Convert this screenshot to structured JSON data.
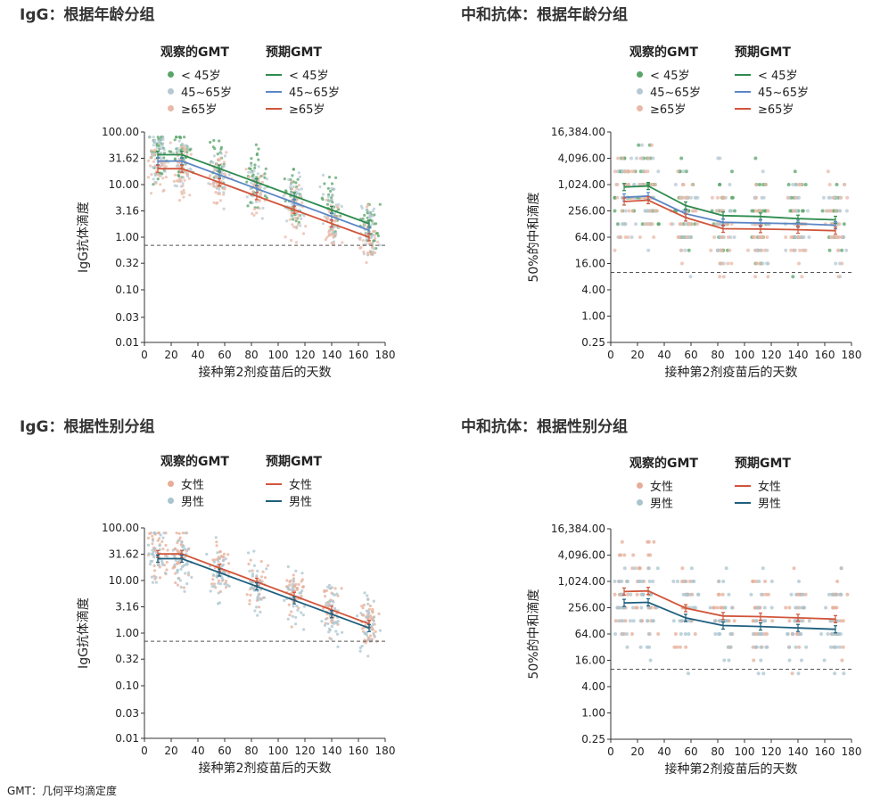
{
  "footnote": "GMT：几何平均滴定度",
  "legend_heads": {
    "observed": "观察的GMT",
    "expected": "预期GMT"
  },
  "colors": {
    "lt45": "#2e8b4f",
    "lt45_pt": "#5aa46a",
    "a45_65": "#5b86c5",
    "a45_65_pt": "#b6c8d4",
    "ge65": "#d1553a",
    "ge65_pt": "#e8b9a8",
    "female": "#d1553a",
    "female_pt": "#e6ad98",
    "male": "#1e5f7e",
    "male_pt": "#a9c4cf",
    "ref": "#555555"
  },
  "panels": [
    {
      "title": "IgG：根据年龄分组",
      "legend": [
        {
          "label": "< 45岁",
          "key": "lt45"
        },
        {
          "label": "45~65岁",
          "key": "a45_65"
        },
        {
          "label": "≥65岁",
          "key": "ge65"
        }
      ]
    },
    {
      "title": "中和抗体：根据年龄分组",
      "legend": [
        {
          "label": "< 45岁",
          "key": "lt45"
        },
        {
          "label": "45~65岁",
          "key": "a45_65"
        },
        {
          "label": "≥65岁",
          "key": "ge65"
        }
      ]
    },
    {
      "title": "IgG：根据性别分组",
      "legend": [
        {
          "label": "女性",
          "key": "female"
        },
        {
          "label": "男性",
          "key": "male"
        }
      ]
    },
    {
      "title": "中和抗体：根据性别分组",
      "legend": [
        {
          "label": "女性",
          "key": "female"
        },
        {
          "label": "男性",
          "key": "male"
        }
      ]
    }
  ],
  "chart_data": [
    {
      "type": "scatter",
      "title": "IgG：根据年龄分组",
      "xlabel": "接种第2剂疫苗后的天数",
      "ylabel": "IgG抗体滴度",
      "xlim": [
        0,
        180
      ],
      "xticks": [
        0,
        20,
        40,
        60,
        80,
        100,
        120,
        140,
        160,
        180
      ],
      "yscale": "log",
      "ylim": [
        0.01,
        100
      ],
      "yticks": [
        0.01,
        0.03,
        0.1,
        0.32,
        1,
        3.16,
        10,
        31.62,
        100
      ],
      "ytick_labels": [
        "0.01",
        "0.03",
        "0.10",
        "0.32",
        "1.00",
        "3.16",
        "10.00",
        "31.62",
        "100.00"
      ],
      "reference_line": 0.7,
      "series": [
        {
          "key": "lt45",
          "observed_x": [
            10,
            28,
            56,
            84,
            112,
            140,
            168
          ],
          "expected": {
            "x": [
              10,
              28,
              168
            ],
            "y": [
              37,
              37,
              1.8
            ]
          }
        },
        {
          "key": "a45_65",
          "observed_x": [
            10,
            28,
            56,
            84,
            112,
            140,
            168
          ],
          "expected": {
            "x": [
              10,
              28,
              168
            ],
            "y": [
              28,
              28,
              1.35
            ]
          }
        },
        {
          "key": "ge65",
          "observed_x": [
            10,
            28,
            56,
            84,
            112,
            140,
            168
          ],
          "expected": {
            "x": [
              10,
              28,
              168
            ],
            "y": [
              20,
              20,
              1.0
            ]
          }
        }
      ]
    },
    {
      "type": "line",
      "title": "中和抗体：根据年龄分组",
      "xlabel": "接种第2剂疫苗后的天数",
      "ylabel": "50%的中和滴度",
      "xlim": [
        0,
        180
      ],
      "xticks": [
        0,
        20,
        40,
        60,
        80,
        100,
        120,
        140,
        160,
        180
      ],
      "yscale": "log2",
      "ylim": [
        0.25,
        16384
      ],
      "yticks": [
        0.25,
        1,
        4,
        16,
        64,
        256,
        1024,
        4096,
        16384
      ],
      "ytick_labels": [
        "0.25",
        "1.00",
        "4.00",
        "16.00",
        "64.00",
        "256.00",
        "1,024.00",
        "4,096.00",
        "16,384.00"
      ],
      "reference_line": 10,
      "series": [
        {
          "key": "lt45",
          "x": [
            10,
            28,
            56,
            84,
            112,
            140,
            168
          ],
          "y": [
            900,
            950,
            340,
            200,
            190,
            170,
            160
          ]
        },
        {
          "key": "a45_65",
          "x": [
            10,
            28,
            56,
            84,
            112,
            140,
            168
          ],
          "y": [
            520,
            560,
            220,
            140,
            135,
            130,
            120
          ]
        },
        {
          "key": "ge65",
          "x": [
            10,
            28,
            56,
            84,
            112,
            140,
            168
          ],
          "y": [
            420,
            450,
            180,
            100,
            98,
            95,
            90
          ]
        }
      ]
    },
    {
      "type": "scatter",
      "title": "IgG：根据性别分组",
      "xlabel": "接种第2剂疫苗后的天数",
      "ylabel": "IgG抗体滴度",
      "xlim": [
        0,
        180
      ],
      "xticks": [
        0,
        20,
        40,
        60,
        80,
        100,
        120,
        140,
        160,
        180
      ],
      "yscale": "log",
      "ylim": [
        0.01,
        100
      ],
      "yticks": [
        0.01,
        0.03,
        0.1,
        0.32,
        1,
        3.16,
        10,
        31.62,
        100
      ],
      "ytick_labels": [
        "0.01",
        "0.03",
        "0.10",
        "0.32",
        "1.00",
        "3.16",
        "10.00",
        "31.62",
        "100.00"
      ],
      "reference_line": 0.7,
      "series": [
        {
          "key": "female",
          "observed_x": [
            10,
            28,
            56,
            84,
            112,
            140,
            168
          ],
          "expected": {
            "x": [
              10,
              28,
              168
            ],
            "y": [
              32,
              32,
              1.5
            ]
          }
        },
        {
          "key": "male",
          "observed_x": [
            10,
            28,
            56,
            84,
            112,
            140,
            168
          ],
          "expected": {
            "x": [
              10,
              28,
              168
            ],
            "y": [
              26,
              26,
              1.25
            ]
          }
        }
      ]
    },
    {
      "type": "line",
      "title": "中和抗体：根据性别分组",
      "xlabel": "接种第2剂疫苗后的天数",
      "ylabel": "50%的中和滴度",
      "xlim": [
        0,
        180
      ],
      "xticks": [
        0,
        20,
        40,
        60,
        80,
        100,
        120,
        140,
        160,
        180
      ],
      "yscale": "log2",
      "ylim": [
        0.25,
        16384
      ],
      "yticks": [
        0.25,
        1,
        4,
        16,
        64,
        256,
        1024,
        4096,
        16384
      ],
      "ytick_labels": [
        "0.25",
        "1.00",
        "4.00",
        "16.00",
        "64.00",
        "256.00",
        "1,024.00",
        "4,096.00",
        "16,384.00"
      ],
      "reference_line": 10,
      "series": [
        {
          "key": "female",
          "x": [
            10,
            28,
            56,
            84,
            112,
            140,
            168
          ],
          "y": [
            600,
            620,
            250,
            165,
            160,
            150,
            140
          ]
        },
        {
          "key": "male",
          "x": [
            10,
            28,
            56,
            84,
            112,
            140,
            168
          ],
          "y": [
            330,
            340,
            150,
            100,
            95,
            88,
            82
          ]
        }
      ]
    }
  ]
}
